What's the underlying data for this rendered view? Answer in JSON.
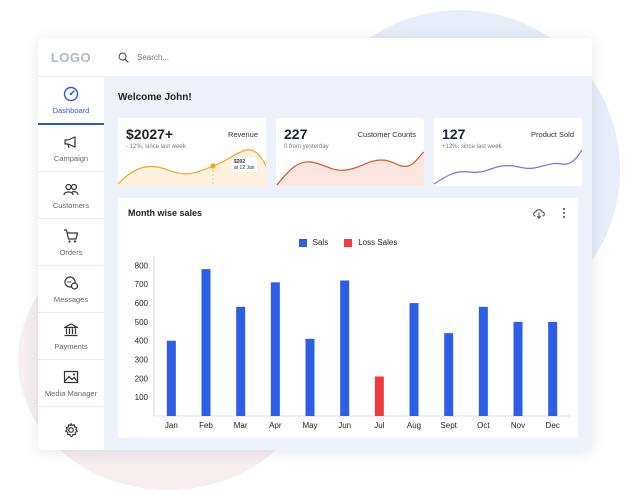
{
  "logo": "LOGO",
  "search": {
    "placeholder": "Search..."
  },
  "sidebar": {
    "items": [
      {
        "label": "Dashboard",
        "icon": "dashboard-icon",
        "active": true
      },
      {
        "label": "Campaign",
        "icon": "megaphone-icon"
      },
      {
        "label": "Customers",
        "icon": "users-icon"
      },
      {
        "label": "Orders",
        "icon": "cart-icon"
      },
      {
        "label": "Messages",
        "icon": "chat-icon"
      },
      {
        "label": "Payments",
        "icon": "bank-icon"
      },
      {
        "label": "Media Manager",
        "icon": "image-icon"
      },
      {
        "label": "",
        "icon": "gear-icon"
      }
    ]
  },
  "welcome": "Welcome John!",
  "cards": [
    {
      "value": "$2027+",
      "label": "Revenue",
      "sub": "- 12%, since last week",
      "color": "#f5a623",
      "tooltip_value": "$202",
      "tooltip_date": "at 12 Jan"
    },
    {
      "value": "227",
      "label": "Customer Counts",
      "sub": "0 from yesterday",
      "color": "#d9542b"
    },
    {
      "value": "127",
      "label": "Product Sold",
      "sub": "+12%, since last week",
      "color": "#7b6fe0"
    }
  ],
  "chart_card": {
    "title": "Month wise sales"
  },
  "chart_data": {
    "type": "bar",
    "categories": [
      "Jan",
      "Feb",
      "Mar",
      "Apr",
      "May",
      "Jun",
      "Jul",
      "Aug",
      "Sept",
      "Oct",
      "Nov",
      "Dec"
    ],
    "series": [
      {
        "name": "Sals",
        "color": "#2c5ee6"
      },
      {
        "name": "Loss Sales",
        "color": "#ee3d3d"
      }
    ],
    "values": [
      400,
      780,
      580,
      710,
      410,
      720,
      210,
      600,
      440,
      580,
      500,
      500
    ],
    "series_index": [
      0,
      0,
      0,
      0,
      0,
      0,
      1,
      0,
      0,
      0,
      0,
      0
    ],
    "yticks": [
      100,
      200,
      300,
      400,
      500,
      600,
      700,
      800
    ],
    "ylim": [
      0,
      850
    ],
    "legend": "top-center"
  }
}
